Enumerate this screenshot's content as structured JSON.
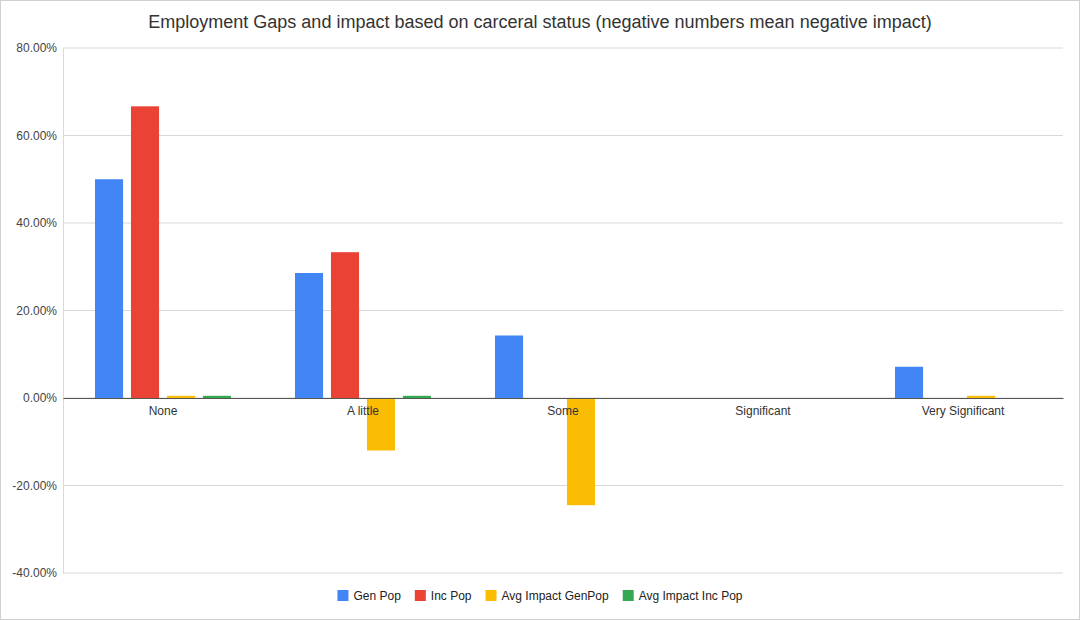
{
  "chart_data": {
    "type": "bar",
    "title": "Employment Gaps and impact based on carceral status (negative numbers mean negative impact)",
    "categories": [
      "None",
      "A little",
      "Some",
      "Significant",
      "Very Significant"
    ],
    "series": [
      {
        "name": "Gen Pop",
        "color": "#4285f4",
        "values": [
          50,
          28.57,
          14.29,
          0,
          7.14
        ]
      },
      {
        "name": "Inc Pop",
        "color": "#ea4335",
        "values": [
          66.67,
          33.33,
          0,
          0,
          0
        ]
      },
      {
        "name": "Avg Impact GenPop",
        "color": "#fbbc04",
        "values": [
          0.5,
          -12,
          -24.5,
          0,
          0.5
        ]
      },
      {
        "name": "Avg Impact Inc Pop",
        "color": "#34a853",
        "values": [
          0.5,
          0.5,
          0,
          0,
          0
        ]
      }
    ],
    "ylim": [
      -40,
      80
    ],
    "yticks": [
      {
        "value": -40,
        "label": "-40.00%"
      },
      {
        "value": -20,
        "label": "-20.00%"
      },
      {
        "value": 0,
        "label": "0.00%"
      },
      {
        "value": 20,
        "label": "20.00%"
      },
      {
        "value": 40,
        "label": "40.00%"
      },
      {
        "value": 60,
        "label": "60.00%"
      },
      {
        "value": 80,
        "label": "80.00%"
      }
    ],
    "grid": true,
    "legend": "bottom"
  }
}
